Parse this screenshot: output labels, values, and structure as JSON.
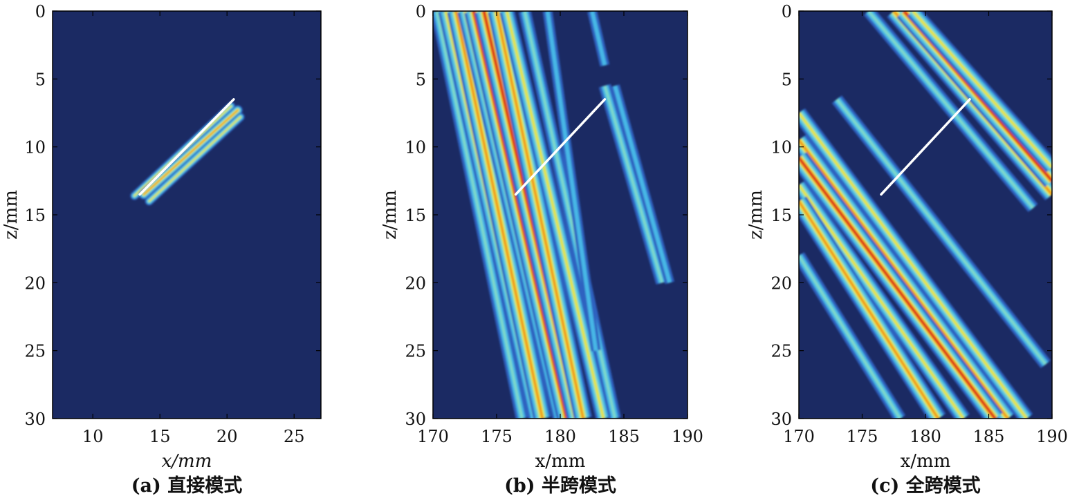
{
  "colors": {
    "background": "#1b2a63",
    "indication_line": "#ffffff",
    "colormap": [
      "#1b2a63",
      "#2f62c0",
      "#47b7e6",
      "#7fd9c9",
      "#e8e33a",
      "#f28a1e",
      "#d7261c"
    ]
  },
  "chart_data": [
    {
      "type": "heatmap",
      "caption": "(a) 直接模式",
      "xlabel": "x/mm",
      "ylabel": "z/mm",
      "xlim": [
        7,
        27
      ],
      "ylim": [
        30,
        0
      ],
      "xticks": [
        10,
        15,
        20,
        25
      ],
      "yticks": [
        0,
        5,
        10,
        15,
        20,
        25,
        30
      ],
      "colorbar": false,
      "indication_line": [
        [
          13.5,
          13.5
        ],
        [
          20.5,
          6.5
        ]
      ],
      "bands": [
        {
          "from": [
            13.1,
            13.6
          ],
          "to": [
            20.3,
            7.0
          ],
          "intensity": "medium"
        },
        {
          "from": [
            13.8,
            13.5
          ],
          "to": [
            20.8,
            7.3
          ],
          "intensity": "high"
        },
        {
          "from": [
            14.2,
            14.0
          ],
          "to": [
            21.0,
            7.8
          ],
          "intensity": "medium"
        }
      ]
    },
    {
      "type": "heatmap",
      "caption": "(b) 半跨模式",
      "xlabel": "x/mm",
      "ylabel": "z/mm",
      "xlim": [
        170,
        190
      ],
      "ylim": [
        30,
        0
      ],
      "xticks": [
        170,
        175,
        180,
        185,
        190
      ],
      "yticks": [
        0,
        5,
        10,
        15,
        20,
        25,
        30
      ],
      "colorbar": false,
      "indication_line": [
        [
          176.5,
          13.5
        ],
        [
          183.5,
          6.5
        ]
      ],
      "bands": [
        {
          "from": [
            170.3,
            0
          ],
          "to": [
            177.0,
            30
          ],
          "intensity": "low"
        },
        {
          "from": [
            171.0,
            0
          ],
          "to": [
            178.1,
            30
          ],
          "intensity": "medium"
        },
        {
          "from": [
            171.8,
            0
          ],
          "to": [
            178.6,
            30
          ],
          "intensity": "high"
        },
        {
          "from": [
            172.5,
            0
          ],
          "to": [
            180.0,
            30
          ],
          "intensity": "medium"
        },
        {
          "from": [
            173.2,
            0
          ],
          "to": [
            180.5,
            30
          ],
          "intensity": "peak"
        },
        {
          "from": [
            174.0,
            0
          ],
          "to": [
            181.3,
            30
          ],
          "intensity": "peak"
        },
        {
          "from": [
            175.0,
            0
          ],
          "to": [
            181.8,
            30
          ],
          "intensity": "high"
        },
        {
          "from": [
            175.8,
            0
          ],
          "to": [
            183.4,
            30
          ],
          "intensity": "medium"
        },
        {
          "from": [
            177.2,
            0
          ],
          "to": [
            184.3,
            30
          ],
          "intensity": "low"
        },
        {
          "from": [
            179.0,
            0
          ],
          "to": [
            182.8,
            25
          ],
          "intensity": "faint"
        },
        {
          "from": [
            182.5,
            0
          ],
          "to": [
            183.5,
            4
          ],
          "intensity": "faint"
        },
        {
          "from": [
            183.5,
            5.5
          ],
          "to": [
            188.0,
            20
          ],
          "intensity": "low"
        },
        {
          "from": [
            184.3,
            5.5
          ],
          "to": [
            188.6,
            20
          ],
          "intensity": "faint"
        }
      ]
    },
    {
      "type": "heatmap",
      "caption": "(c) 全跨模式",
      "xlabel": "x/mm",
      "ylabel": "z/mm",
      "xlim": [
        170,
        190
      ],
      "ylim": [
        30,
        0
      ],
      "xticks": [
        170,
        175,
        180,
        185,
        190
      ],
      "yticks": [
        0,
        5,
        10,
        15,
        20,
        25,
        30
      ],
      "colorbar": false,
      "indication_line": [
        [
          176.5,
          13.5
        ],
        [
          183.5,
          6.5
        ]
      ],
      "bands": [
        {
          "from": [
            175.5,
            0
          ],
          "to": [
            188.5,
            14.5
          ],
          "intensity": "low"
        },
        {
          "from": [
            177.5,
            0
          ],
          "to": [
            190.0,
            13.5
          ],
          "intensity": "high"
        },
        {
          "from": [
            178.3,
            0
          ],
          "to": [
            190.0,
            12.5
          ],
          "intensity": "peak"
        },
        {
          "from": [
            179.0,
            0
          ],
          "to": [
            190.0,
            11.5
          ],
          "intensity": "medium"
        },
        {
          "from": [
            170.0,
            7.5
          ],
          "to": [
            188.0,
            30.0
          ],
          "intensity": "medium"
        },
        {
          "from": [
            170.0,
            9.5
          ],
          "to": [
            186.5,
            30.0
          ],
          "intensity": "high"
        },
        {
          "from": [
            170.0,
            10.8
          ],
          "to": [
            185.5,
            30.0
          ],
          "intensity": "peak"
        },
        {
          "from": [
            170.0,
            12.8
          ],
          "to": [
            183.0,
            30.0
          ],
          "intensity": "medium"
        },
        {
          "from": [
            170.0,
            14.0
          ],
          "to": [
            181.0,
            30.0
          ],
          "intensity": "high"
        },
        {
          "from": [
            170.0,
            18.0
          ],
          "to": [
            178.0,
            30.0
          ],
          "intensity": "low"
        },
        {
          "from": [
            173.0,
            6.5
          ],
          "to": [
            189.5,
            26.0
          ],
          "intensity": "low"
        }
      ]
    }
  ]
}
